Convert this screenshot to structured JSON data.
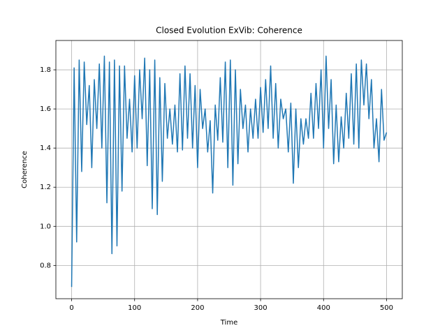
{
  "chart_data": {
    "type": "line",
    "title": "Closed Evolution ExVib: Coherence",
    "xlabel": "Time",
    "ylabel": "Coherence",
    "color": "#1f77b4",
    "grid": true,
    "xlim": [
      -25,
      525
    ],
    "ylim": [
      0.63,
      1.95
    ],
    "xticks": [
      0,
      100,
      200,
      300,
      400,
      500
    ],
    "yticks": [
      0.8,
      {
        "value": 1.0,
        "label": "1.0"
      },
      1.2,
      1.4,
      1.6,
      1.8
    ],
    "x": [
      0,
      4,
      8,
      12,
      16,
      20,
      24,
      28,
      32,
      36,
      40,
      44,
      48,
      52,
      56,
      60,
      64,
      68,
      72,
      76,
      80,
      84,
      88,
      92,
      96,
      100,
      104,
      108,
      112,
      116,
      120,
      124,
      128,
      132,
      136,
      140,
      144,
      148,
      152,
      156,
      160,
      164,
      168,
      172,
      176,
      180,
      184,
      188,
      192,
      196,
      200,
      204,
      208,
      212,
      216,
      220,
      224,
      228,
      232,
      236,
      240,
      244,
      248,
      252,
      256,
      260,
      264,
      268,
      272,
      276,
      280,
      284,
      288,
      292,
      296,
      300,
      304,
      308,
      312,
      316,
      320,
      324,
      328,
      332,
      336,
      340,
      344,
      348,
      352,
      356,
      360,
      364,
      368,
      372,
      376,
      380,
      384,
      388,
      392,
      396,
      400,
      404,
      408,
      412,
      416,
      420,
      424,
      428,
      432,
      436,
      440,
      444,
      448,
      452,
      456,
      460,
      464,
      468,
      472,
      476,
      480,
      484,
      488,
      492,
      496,
      500
    ],
    "values": [
      0.69,
      1.81,
      0.92,
      1.85,
      1.28,
      1.84,
      1.52,
      1.72,
      1.3,
      1.75,
      1.5,
      1.83,
      1.4,
      1.87,
      1.12,
      1.84,
      0.86,
      1.85,
      0.9,
      1.82,
      1.18,
      1.82,
      1.45,
      1.65,
      1.38,
      1.77,
      1.4,
      1.8,
      1.55,
      1.86,
      1.31,
      1.8,
      1.09,
      1.85,
      1.06,
      1.76,
      1.23,
      1.73,
      1.45,
      1.6,
      1.42,
      1.62,
      1.38,
      1.78,
      1.39,
      1.82,
      1.45,
      1.78,
      1.4,
      1.72,
      1.3,
      1.7,
      1.5,
      1.6,
      1.38,
      1.54,
      1.17,
      1.62,
      1.44,
      1.76,
      1.43,
      1.84,
      1.3,
      1.85,
      1.21,
      1.8,
      1.32,
      1.7,
      1.5,
      1.62,
      1.38,
      1.6,
      1.45,
      1.65,
      1.45,
      1.71,
      1.48,
      1.75,
      1.5,
      1.82,
      1.45,
      1.73,
      1.4,
      1.65,
      1.55,
      1.6,
      1.38,
      1.63,
      1.22,
      1.6,
      1.3,
      1.55,
      1.42,
      1.55,
      1.45,
      1.68,
      1.45,
      1.73,
      1.5,
      1.8,
      1.4,
      1.87,
      1.5,
      1.75,
      1.32,
      1.62,
      1.33,
      1.56,
      1.4,
      1.68,
      1.45,
      1.78,
      1.42,
      1.83,
      1.4,
      1.85,
      1.62,
      1.83,
      1.55,
      1.75,
      1.4,
      1.55,
      1.33,
      1.7,
      1.44,
      1.48
    ]
  }
}
